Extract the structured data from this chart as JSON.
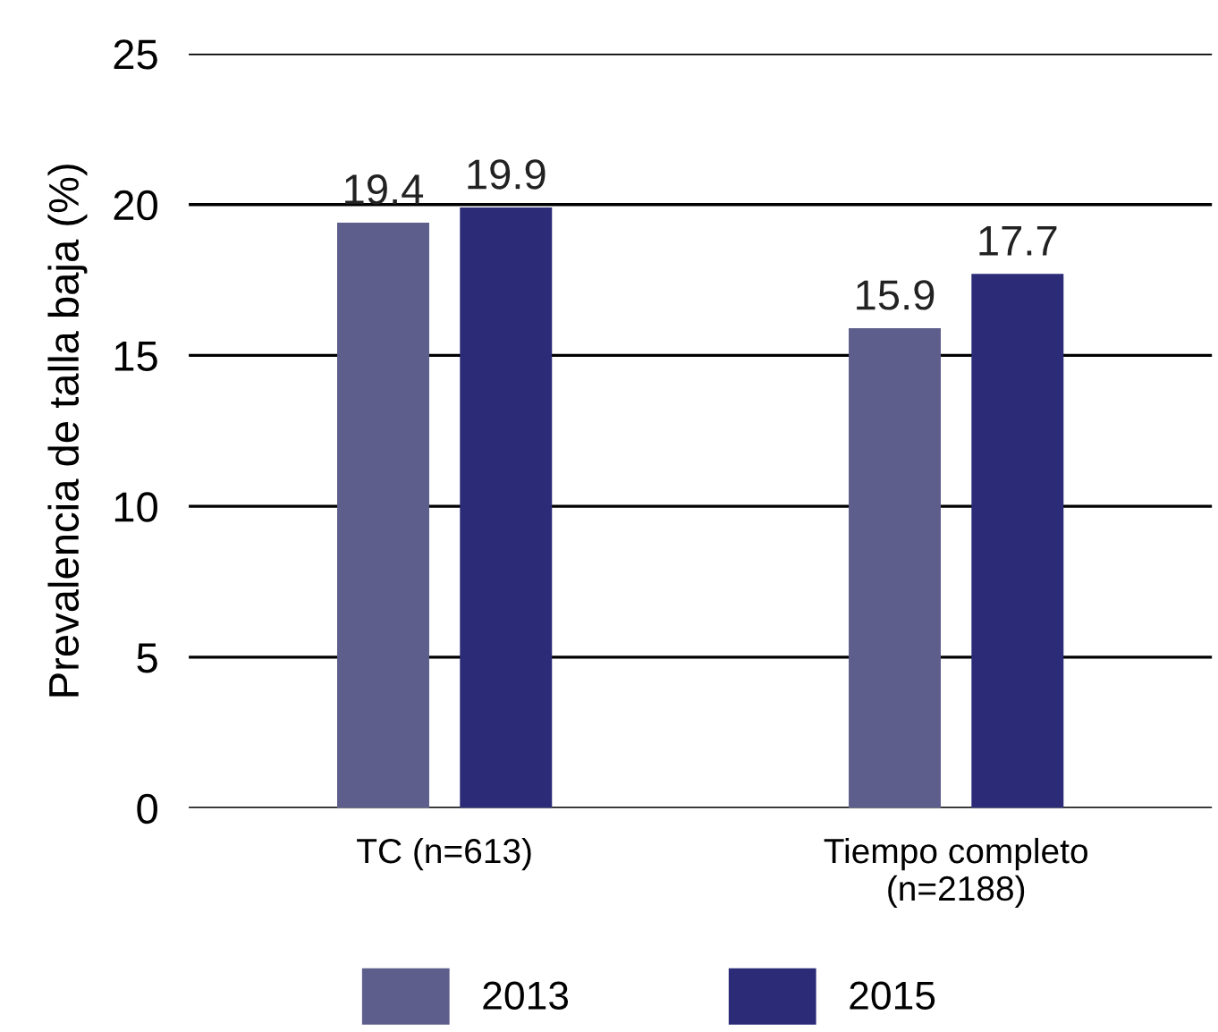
{
  "chart_data": {
    "type": "bar",
    "ylabel": "Prevalencia de talla baja (%)",
    "categories": [
      "TC (n=613)",
      "Tiempo completo\n(n=2188)"
    ],
    "series": [
      {
        "name": "2013",
        "color": "#5e5e8c",
        "values": [
          19.4,
          15.9
        ]
      },
      {
        "name": "2015",
        "color": "#2b2b78",
        "values": [
          19.9,
          17.7
        ]
      }
    ],
    "ylim": [
      0,
      25
    ],
    "yticks": [
      0,
      5,
      10,
      15,
      20,
      25
    ],
    "grid": "y",
    "legend": "bottom",
    "data_labels": true
  }
}
